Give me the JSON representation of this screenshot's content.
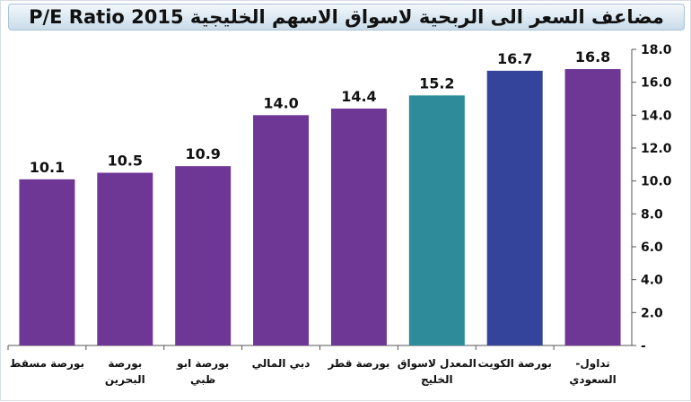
{
  "chart_data": {
    "type": "bar",
    "title": "مضاعف السعر الى الربحية لاسواق الاسهم الخليجية P/E Ratio 2015",
    "categories": [
      [
        "بورصة مسقط"
      ],
      [
        "بورصة",
        "البحرين"
      ],
      [
        "بورصة ابو",
        "ظبي"
      ],
      [
        "دبي المالي"
      ],
      [
        "بورصة قطر"
      ],
      [
        "المعدل لاسواق",
        "الخليج"
      ],
      [
        "بورصة الكويت"
      ],
      [
        "تداول-",
        "السعودي"
      ]
    ],
    "values": [
      10.1,
      10.5,
      10.9,
      14.0,
      14.4,
      15.2,
      16.7,
      16.8
    ],
    "value_labels": [
      "10.1",
      "10.5",
      "10.9",
      "14.0",
      "14.4",
      "15.2",
      "16.7",
      "16.8"
    ],
    "colors": [
      "#6f3795",
      "#6f3795",
      "#6f3795",
      "#6f3795",
      "#6f3795",
      "#2e8b9a",
      "#34449a",
      "#6f3795"
    ],
    "ylim": [
      0,
      18
    ],
    "yticks": [
      "-",
      "2.0",
      "4.0",
      "6.0",
      "8.0",
      "10.0",
      "12.0",
      "14.0",
      "16.0",
      "18.0"
    ],
    "ytick_values": [
      0,
      2,
      4,
      6,
      8,
      10,
      12,
      14,
      16,
      18
    ],
    "axis_side": "right",
    "xlabel": "",
    "ylabel": "",
    "grid": false,
    "legend": false
  }
}
